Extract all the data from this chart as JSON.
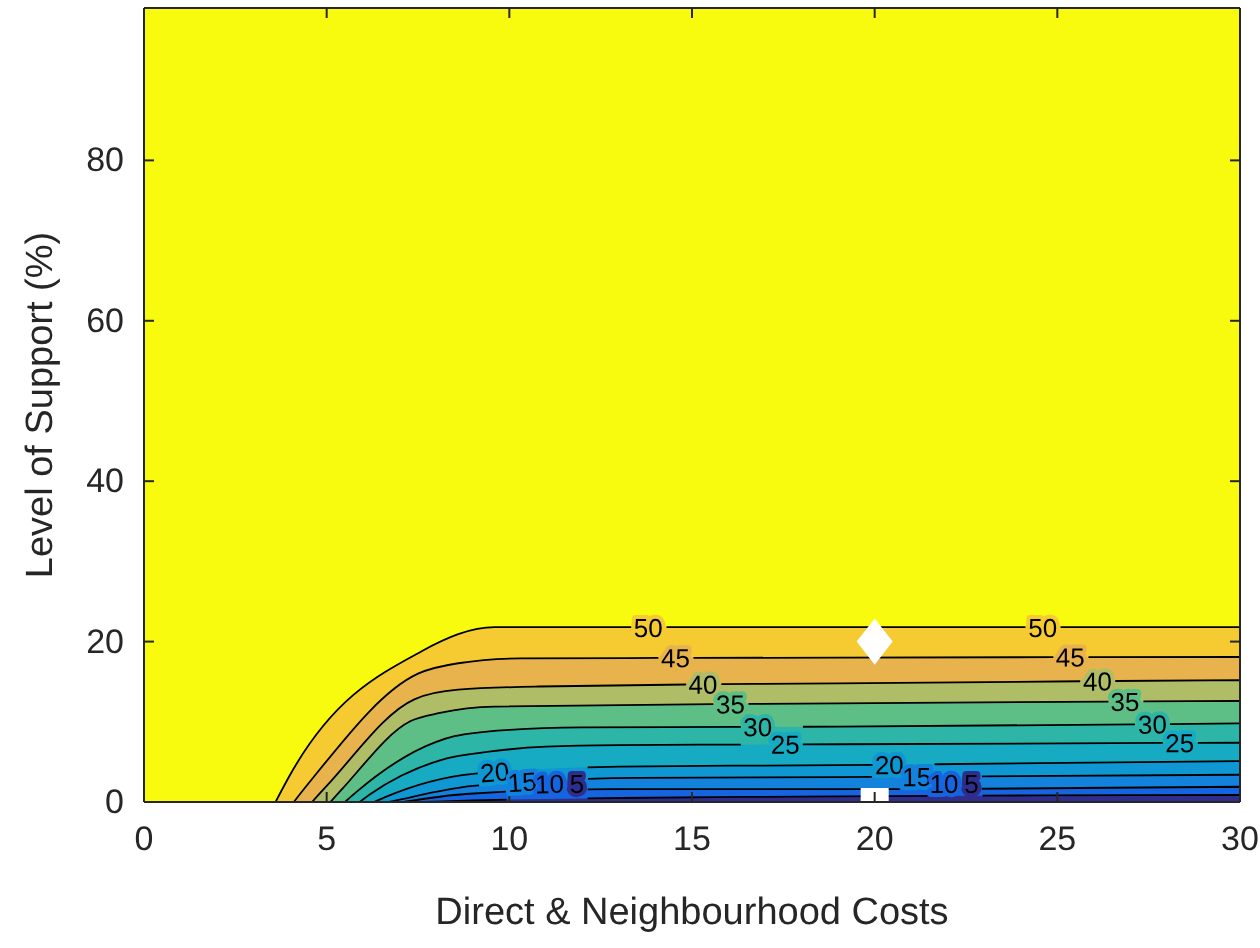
{
  "chart_data": {
    "type": "area",
    "xlabel": "Direct & Neighbourhood Costs",
    "ylabel": "Level of Support (%)",
    "xlim": [
      0,
      30
    ],
    "ylim": [
      0,
      99
    ],
    "xticks": [
      0,
      5,
      10,
      15,
      20,
      25,
      30
    ],
    "yticks": [
      0,
      20,
      40,
      60,
      80
    ],
    "bands": [
      {
        "axis": "x",
        "from": 0,
        "to": 30,
        "color": "#f9fb0e"
      }
    ],
    "series": [
      {
        "name": "50",
        "color": "#f6cb32",
        "x": [
          3.6,
          4,
          7.6,
          9.6,
          30
        ],
        "values": [
          0,
          3.4,
          18.8,
          21.8,
          21.8
        ]
      },
      {
        "name": "45",
        "color": "#e8b34c",
        "x": [
          4.1,
          4.5,
          7.5,
          8.6,
          10.3,
          19,
          30
        ],
        "values": [
          0,
          2.3,
          16,
          17.3,
          17.9,
          18,
          18.1
        ]
      },
      {
        "name": "40",
        "color": "#aebd66",
        "x": [
          4.6,
          5,
          7.4,
          8.6,
          10.8,
          19,
          30
        ],
        "values": [
          0,
          2,
          12.8,
          14,
          14.4,
          14.8,
          15.2
        ]
      },
      {
        "name": "35",
        "color": "#5ebf86",
        "x": [
          5.1,
          5.4,
          7.3,
          8.1,
          9.6,
          19,
          30
        ],
        "values": [
          0,
          1.5,
          10.1,
          11.1,
          11.9,
          12.3,
          12.6
        ]
      },
      {
        "name": "30",
        "color": "#2db6a8",
        "x": [
          5.5,
          5.8,
          8,
          8.5,
          10,
          12,
          19,
          30
        ],
        "values": [
          0,
          1.2,
          7.5,
          8.2,
          9,
          9.3,
          9.4,
          9.8
        ]
      },
      {
        "name": "25",
        "color": "#17abc3",
        "x": [
          5.9,
          6.2,
          8.1,
          9.5,
          11,
          13,
          19,
          30
        ],
        "values": [
          0,
          1,
          5.2,
          6.3,
          6.9,
          7.1,
          7.2,
          7.4
        ]
      },
      {
        "name": "20",
        "color": "#0e97d2",
        "x": [
          6.3,
          6.6,
          9,
          13,
          19,
          30
        ],
        "values": [
          0,
          0.6,
          3.5,
          4.4,
          4.6,
          5.1
        ]
      },
      {
        "name": "15",
        "color": "#1282dc",
        "x": [
          6.7,
          7,
          9,
          13.5,
          19,
          30
        ],
        "values": [
          0,
          0.3,
          2,
          3,
          3.1,
          3.4
        ]
      },
      {
        "name": "10",
        "color": "#1565e0",
        "x": [
          7.1,
          8.8,
          12.8,
          19,
          30
        ],
        "values": [
          0,
          1,
          1.6,
          1.6,
          1.9
        ]
      },
      {
        "name": "5",
        "color": "#2f2e8f",
        "x": [
          7.6,
          9,
          13,
          19,
          30
        ],
        "values": [
          0,
          0.2,
          0.5,
          0.7,
          0.9
        ]
      },
      {
        "type": "scatter",
        "marker": "diamond",
        "color": "#ffffff",
        "x": [
          20
        ],
        "values": [
          20
        ]
      },
      {
        "type": "scatter",
        "marker": "square",
        "color": "#ffffff",
        "x": [
          20
        ],
        "values": [
          0
        ]
      }
    ]
  }
}
